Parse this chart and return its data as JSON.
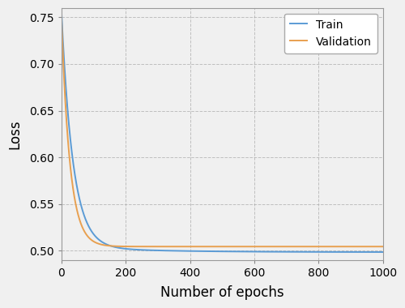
{
  "title": "",
  "xlabel": "Number of epochs",
  "ylabel": "Loss",
  "xlim": [
    0,
    1000
  ],
  "ylim": [
    0.49,
    0.76
  ],
  "yticks": [
    0.5,
    0.55,
    0.6,
    0.65,
    0.7,
    0.75
  ],
  "xticks": [
    0,
    200,
    400,
    600,
    800,
    1000
  ],
  "train_color": "#5b9bd5",
  "val_color": "#e8a050",
  "legend_labels": [
    "Train",
    "Validation"
  ],
  "train_asymptote": 0.4985,
  "train_amplitude": 0.2515,
  "train_decay": 2.8,
  "val_asymptote": 0.5045,
  "val_amplitude": 0.2455,
  "val_decay": 3.8,
  "val_secondary_amp": 0.004,
  "val_secondary_decay": 1.2,
  "background_color": "#f0f0f0",
  "grid_color": "#aaaaaa",
  "line_width": 1.4
}
